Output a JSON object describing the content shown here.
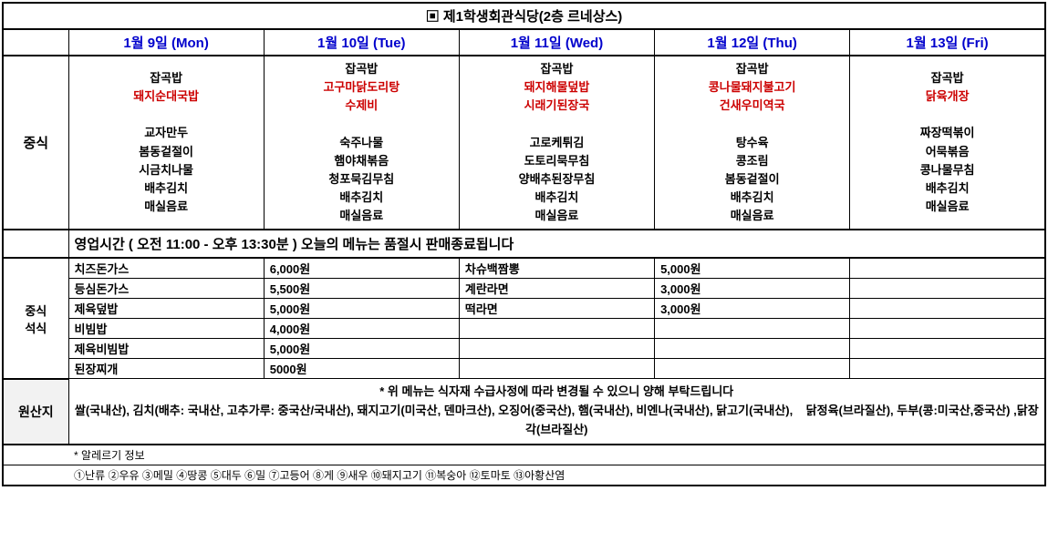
{
  "title": "▣ 제1학생회관식당(2층 르네상스)",
  "colors": {
    "header_blue": "#0000cc",
    "main_red": "#cc0000",
    "text_black": "#000000",
    "origin_bg": "#f2f2f2"
  },
  "days": [
    {
      "label": "1월 9일 (Mon)"
    },
    {
      "label": "1월 10일 (Tue)"
    },
    {
      "label": "1월 11일 (Wed)"
    },
    {
      "label": "1월 12일 (Thu)"
    },
    {
      "label": "1월 13일 (Fri)"
    }
  ],
  "lunch": {
    "row_label": "중식",
    "menus": [
      {
        "top": "잡곡밥",
        "main": [
          "돼지순대국밥"
        ],
        "sides": [
          "교자만두",
          "봄동겉절이",
          "시금치나물",
          "배추김치",
          "매실음료"
        ]
      },
      {
        "top": "잡곡밥",
        "main": [
          "고구마닭도리탕",
          "수제비"
        ],
        "sides": [
          "숙주나물",
          "햄야채볶음",
          "청포묵김무침",
          "배추김치",
          "매실음료"
        ]
      },
      {
        "top": "잡곡밥",
        "main": [
          "돼지해물덮밥",
          "시래기된장국"
        ],
        "sides": [
          "고로케튀김",
          "도토리묵무침",
          "양배추된장무침",
          "배추김치",
          "매실음료"
        ]
      },
      {
        "top": "잡곡밥",
        "main": [
          "콩나물돼지불고기",
          "건새우미역국"
        ],
        "sides": [
          "탕수육",
          "콩조림",
          "봄동겉절이",
          "배추김치",
          "매실음료"
        ]
      },
      {
        "top": "잡곡밥",
        "main": [
          "닭육개장"
        ],
        "sides": [
          "짜장떡볶이",
          "어묵볶음",
          "콩나물무침",
          "배추김치",
          "매실음료"
        ]
      }
    ]
  },
  "notice": "영업시간 ( 오전 11:00 - 오후 13:30분 ) 오늘의 메뉴는 품절시 판매종료됩니다",
  "alacarte": {
    "row_label_1": "중식",
    "row_label_2": "석식",
    "left": [
      {
        "name": "치즈돈가스",
        "price": "6,000원"
      },
      {
        "name": "등심돈가스",
        "price": "5,500원"
      },
      {
        "name": "제육덮밥",
        "price": "5,000원"
      },
      {
        "name": "비빔밥",
        "price": "4,000원"
      },
      {
        "name": "제육비빔밥",
        "price": "5,000원"
      },
      {
        "name": "된장찌개",
        "price": "5000원"
      }
    ],
    "right": [
      {
        "name": "차슈백짬뽕",
        "price": "5,000원"
      },
      {
        "name": "계란라면",
        "price": "3,000원"
      },
      {
        "name": "떡라면",
        "price": "3,000원"
      },
      {
        "name": "",
        "price": ""
      },
      {
        "name": "",
        "price": ""
      },
      {
        "name": "",
        "price": ""
      }
    ]
  },
  "origin": {
    "label": "원산지",
    "line1": "* 위 메뉴는 식자재 수급사정에 따라 변경될 수 있으니 양해 부탁드립니다",
    "line2": "쌀(국내산), 김치(배추: 국내산, 고추가루: 중국산/국내산), 돼지고기(미국산, 덴마크산), 오징어(중국산), 햄(국내산), 비엔나(국내산), 닭고기(국내산),    닭정육(브라질산), 두부(콩:미국산,중국산) ,닭장각(브라질산)"
  },
  "allergy": {
    "title": "* 알레르기 정보",
    "list": "①난류 ②우유 ③메밀 ④땅콩 ⑤대두 ⑥밀 ⑦고등어 ⑧게 ⑨새우 ⑩돼지고기 ⑪복숭아 ⑫토마토 ⑬아황산염"
  }
}
